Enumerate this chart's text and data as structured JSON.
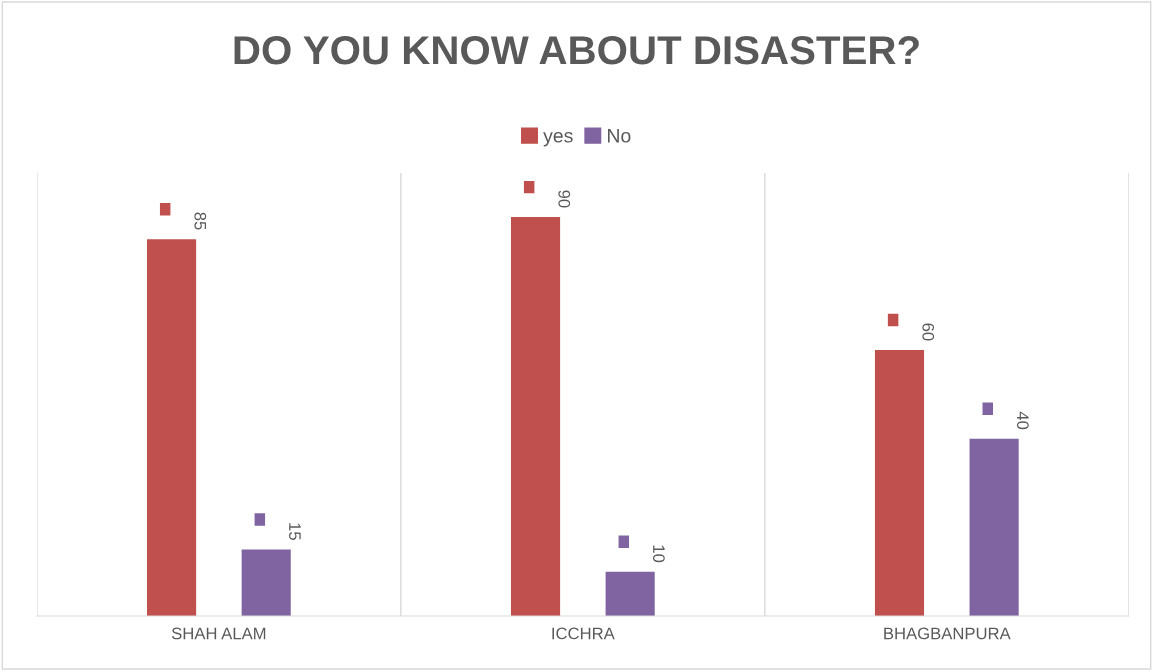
{
  "chart_data": {
    "type": "bar",
    "title": "DO YOU KNOW ABOUT DISASTER?",
    "categories": [
      "SHAH ALAM",
      "ICCHRA",
      "BHAGBANPURA"
    ],
    "series": [
      {
        "name": "yes",
        "color": "#c0504d",
        "values": [
          85,
          90,
          60
        ]
      },
      {
        "name": "No",
        "color": "#8064a2",
        "values": [
          15,
          10,
          40
        ]
      }
    ],
    "data_labels": true,
    "grid": "x",
    "legend": "top"
  }
}
